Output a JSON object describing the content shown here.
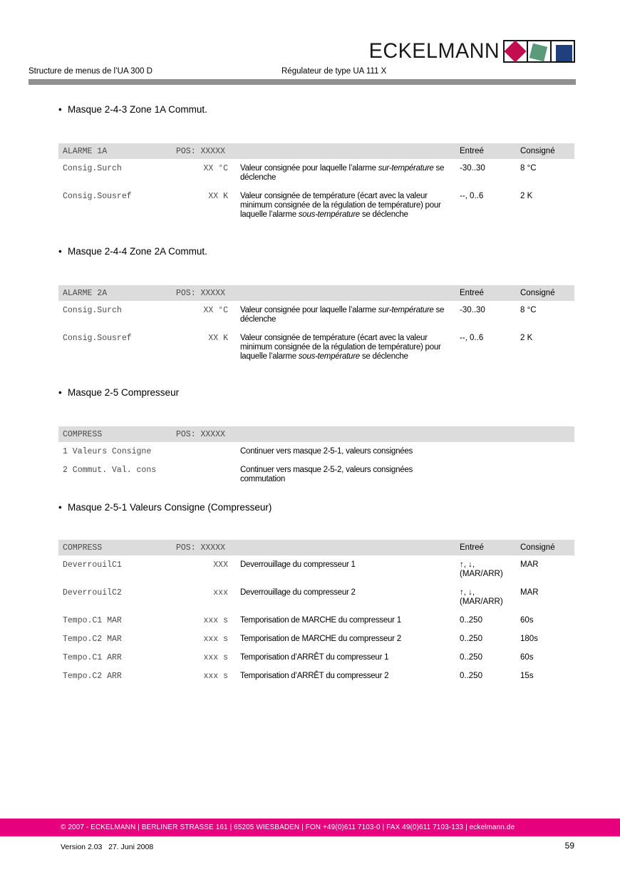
{
  "logo": {
    "text": "ECKELMANN",
    "colors": {
      "magenta": "#C20D4F",
      "green": "#5B9B7B",
      "blue": "#1F3F7D"
    }
  },
  "header": {
    "left": "Structure de menus de l’UA 300 D",
    "center": "Régulateur de type UA 111 X",
    "bar_color": "#909090"
  },
  "sections": [
    {
      "heading": "Masque 2-4-3 Zone 1A Commut.",
      "table": {
        "title": "ALARME 1A",
        "pos": "POS: XXXXX",
        "col_entree": "Entreé",
        "col_consigne": "Consigné",
        "rows": [
          {
            "name": "Consig.Surch",
            "value": "XX °C",
            "desc": [
              {
                "t": "Valeur consignée pour laquelle l’alarme "
              },
              {
                "t": "sur-température",
                "i": true
              },
              {
                "t": " se déclenche"
              }
            ],
            "entree": "-30..30",
            "consigne": "8 °C"
          },
          {
            "name": "Consig.Sousref",
            "value": "XX K",
            "desc": [
              {
                "t": "Valeur consignée de température (écart avec la valeur minimum consignée de la régulation de température) pour laquelle l’alarme "
              },
              {
                "t": "sous-température",
                "i": true
              },
              {
                "t": " se déclenche"
              }
            ],
            "entree": "--, 0..6",
            "consigne": "2 K"
          }
        ]
      }
    },
    {
      "heading": "Masque 2-4-4 Zone 2A Commut.",
      "table": {
        "title": "ALARME 2A",
        "pos": "POS: XXXXX",
        "col_entree": "Entreé",
        "col_consigne": "Consigné",
        "rows": [
          {
            "name": "Consig.Surch",
            "value": "XX °C",
            "desc": [
              {
                "t": "Valeur consignée pour laquelle l’alarme "
              },
              {
                "t": "sur-température",
                "i": true
              },
              {
                "t": " se déclenche"
              }
            ],
            "entree": "-30..30",
            "consigne": "8 °C"
          },
          {
            "name": "Consig.Sousref",
            "value": "XX K",
            "desc": [
              {
                "t": "Valeur consignée de température (écart avec la valeur minimum consignée de la régulation de température) pour laquelle l’alarme "
              },
              {
                "t": "sous-température",
                "i": true
              },
              {
                "t": " se déclenche"
              }
            ],
            "entree": "--, 0..6",
            "consigne": "2 K"
          }
        ]
      }
    },
    {
      "heading": "Masque 2-5 Compresseur",
      "table": {
        "title": "COMPRESS",
        "pos": "POS: XXXXX",
        "rows": [
          {
            "name": "1 Valeurs Consigne",
            "desc": [
              {
                "t": "Continuer vers masque 2-5-1, valeurs consignées"
              }
            ]
          },
          {
            "name": "2 Commut. Val. cons",
            "desc": [
              {
                "t": "Continuer vers masque 2-5-2, valeurs consignées commutation"
              }
            ]
          }
        ]
      }
    },
    {
      "heading": "Masque 2-5-1 Valeurs Consigne (Compresseur)",
      "table": {
        "title": "COMPRESS",
        "pos": "POS: XXXXX",
        "col_entree": "Entreé",
        "col_consigne": "Consigné",
        "rows": [
          {
            "name": "DeverrouilC1",
            "value": "XXX",
            "desc": [
              {
                "t": "Deverrouillage du compresseur 1"
              }
            ],
            "entree": "↑, ↓,\n(MAR/ARR)",
            "consigne": "MAR"
          },
          {
            "name": "DeverrouilC2",
            "value": "xxx",
            "desc": [
              {
                "t": "Deverrouillage du compresseur 2"
              }
            ],
            "entree": "↑, ↓,\n(MAR/ARR)",
            "consigne": "MAR"
          },
          {
            "name": "Tempo.C1 MAR",
            "value": "xxx s",
            "desc": [
              {
                "t": "Temporisation de MARCHE du compresseur 1"
              }
            ],
            "entree": "0..250",
            "consigne": "60s"
          },
          {
            "name": "Tempo.C2 MAR",
            "value": "xxx s",
            "desc": [
              {
                "t": "Temporisation de MARCHE du compresseur 2"
              }
            ],
            "entree": "0..250",
            "consigne": "180s"
          },
          {
            "name": "Tempo.C1 ARR",
            "value": "xxx s",
            "desc": [
              {
                "t": "Temporisation d’ARRÊT du compresseur 1"
              }
            ],
            "entree": "0..250",
            "consigne": "60s"
          },
          {
            "name": "Tempo.C2 ARR",
            "value": "xxx s",
            "desc": [
              {
                "t": "Temporisation d’ARRÊT du compresseur 2"
              }
            ],
            "entree": "0..250",
            "consigne": "15s"
          }
        ]
      }
    }
  ],
  "footer": {
    "bar_color": "#E6007E",
    "bar_text": "© 2007 - ECKELMANN | BERLINER STRASSE 161 | 65205 WIESBADEN | FON +49(0)611 7103-0 | FAX 49(0)611 7103-133 | eckelmann.de",
    "version": "Version 2.03   27. Juni 2008",
    "page_number": "59"
  }
}
